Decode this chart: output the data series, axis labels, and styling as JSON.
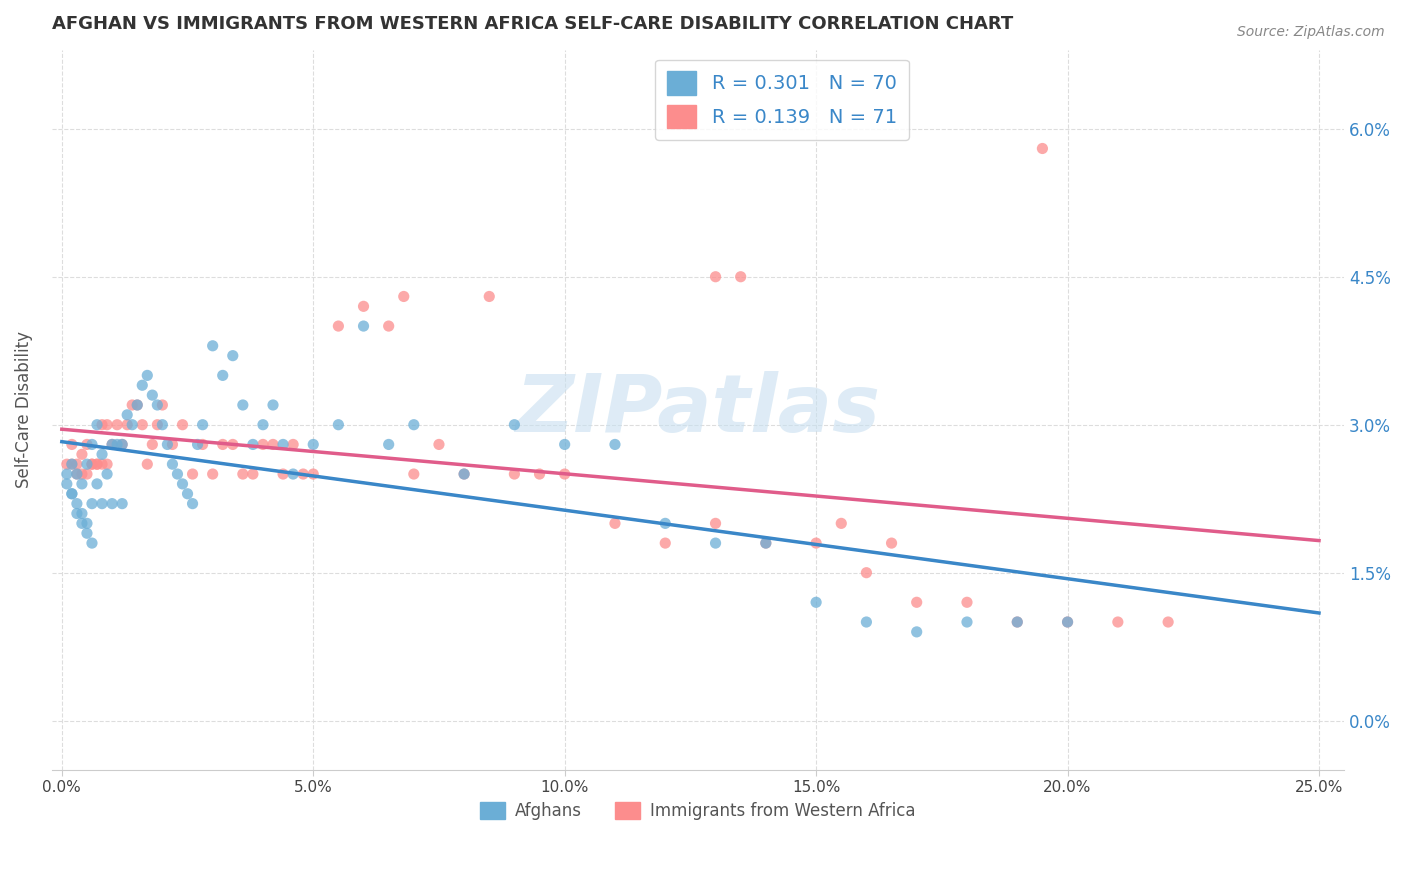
{
  "title": "AFGHAN VS IMMIGRANTS FROM WESTERN AFRICA SELF-CARE DISABILITY CORRELATION CHART",
  "source": "Source: ZipAtlas.com",
  "ylabel": "Self-Care Disability",
  "xlabel_ticks": [
    "0.0%",
    "5.0%",
    "10.0%",
    "15.0%",
    "20.0%",
    "25.0%"
  ],
  "xlabel_vals": [
    0.0,
    0.05,
    0.1,
    0.15,
    0.2,
    0.25
  ],
  "ylabel_ticks": [
    "0.0%",
    "1.5%",
    "3.0%",
    "4.5%",
    "6.0%"
  ],
  "ylabel_vals": [
    0.0,
    0.015,
    0.03,
    0.045,
    0.06
  ],
  "xlim": [
    -0.002,
    0.255
  ],
  "ylim": [
    -0.005,
    0.068
  ],
  "legend_afghan_label": "Afghans",
  "legend_western_label": "Immigrants from Western Africa",
  "afghan_R": "0.301",
  "afghan_N": "70",
  "western_R": "0.139",
  "western_N": "71",
  "afghan_color": "#6baed6",
  "western_color": "#fc8d8d",
  "afghan_x": [
    0.001,
    0.002,
    0.002,
    0.003,
    0.003,
    0.004,
    0.004,
    0.005,
    0.005,
    0.006,
    0.006,
    0.007,
    0.007,
    0.008,
    0.008,
    0.009,
    0.01,
    0.01,
    0.011,
    0.012,
    0.012,
    0.013,
    0.014,
    0.015,
    0.016,
    0.017,
    0.018,
    0.019,
    0.02,
    0.021,
    0.022,
    0.023,
    0.024,
    0.025,
    0.026,
    0.027,
    0.028,
    0.03,
    0.032,
    0.034,
    0.036,
    0.038,
    0.04,
    0.042,
    0.044,
    0.046,
    0.05,
    0.055,
    0.06,
    0.065,
    0.07,
    0.08,
    0.09,
    0.1,
    0.11,
    0.12,
    0.13,
    0.14,
    0.15,
    0.16,
    0.17,
    0.18,
    0.19,
    0.2,
    0.001,
    0.002,
    0.003,
    0.004,
    0.005,
    0.006
  ],
  "afghan_y": [
    0.024,
    0.026,
    0.023,
    0.025,
    0.022,
    0.024,
    0.021,
    0.026,
    0.02,
    0.028,
    0.022,
    0.03,
    0.024,
    0.027,
    0.022,
    0.025,
    0.028,
    0.022,
    0.028,
    0.028,
    0.022,
    0.031,
    0.03,
    0.032,
    0.034,
    0.035,
    0.033,
    0.032,
    0.03,
    0.028,
    0.026,
    0.025,
    0.024,
    0.023,
    0.022,
    0.028,
    0.03,
    0.038,
    0.035,
    0.037,
    0.032,
    0.028,
    0.03,
    0.032,
    0.028,
    0.025,
    0.028,
    0.03,
    0.04,
    0.028,
    0.03,
    0.025,
    0.03,
    0.028,
    0.028,
    0.02,
    0.018,
    0.018,
    0.012,
    0.01,
    0.009,
    0.01,
    0.01,
    0.01,
    0.025,
    0.023,
    0.021,
    0.02,
    0.019,
    0.018
  ],
  "western_x": [
    0.002,
    0.003,
    0.004,
    0.005,
    0.006,
    0.007,
    0.008,
    0.009,
    0.01,
    0.011,
    0.012,
    0.013,
    0.014,
    0.015,
    0.016,
    0.017,
    0.018,
    0.019,
    0.02,
    0.022,
    0.024,
    0.026,
    0.028,
    0.03,
    0.032,
    0.034,
    0.036,
    0.038,
    0.04,
    0.042,
    0.044,
    0.046,
    0.048,
    0.05,
    0.055,
    0.06,
    0.065,
    0.068,
    0.07,
    0.075,
    0.08,
    0.085,
    0.09,
    0.095,
    0.1,
    0.11,
    0.12,
    0.13,
    0.135,
    0.14,
    0.15,
    0.155,
    0.16,
    0.165,
    0.17,
    0.18,
    0.19,
    0.2,
    0.21,
    0.22,
    0.001,
    0.002,
    0.003,
    0.004,
    0.005,
    0.006,
    0.007,
    0.008,
    0.009,
    0.195,
    0.13
  ],
  "western_y": [
    0.028,
    0.026,
    0.027,
    0.028,
    0.026,
    0.026,
    0.03,
    0.03,
    0.028,
    0.03,
    0.028,
    0.03,
    0.032,
    0.032,
    0.03,
    0.026,
    0.028,
    0.03,
    0.032,
    0.028,
    0.03,
    0.025,
    0.028,
    0.025,
    0.028,
    0.028,
    0.025,
    0.025,
    0.028,
    0.028,
    0.025,
    0.028,
    0.025,
    0.025,
    0.04,
    0.042,
    0.04,
    0.043,
    0.025,
    0.028,
    0.025,
    0.043,
    0.025,
    0.025,
    0.025,
    0.02,
    0.018,
    0.02,
    0.045,
    0.018,
    0.018,
    0.02,
    0.015,
    0.018,
    0.012,
    0.012,
    0.01,
    0.01,
    0.01,
    0.01,
    0.026,
    0.026,
    0.025,
    0.025,
    0.025,
    0.026,
    0.026,
    0.026,
    0.026,
    0.058,
    0.045
  ],
  "trendline_afghan_color": "#3a87c8",
  "trendline_western_color": "#e05c8a",
  "trendline_dashed_color": "#aaaaaa",
  "background_color": "#ffffff",
  "grid_color": "#dddddd",
  "watermark_text": "ZIPatlas",
  "watermark_color": "#c8dff0"
}
